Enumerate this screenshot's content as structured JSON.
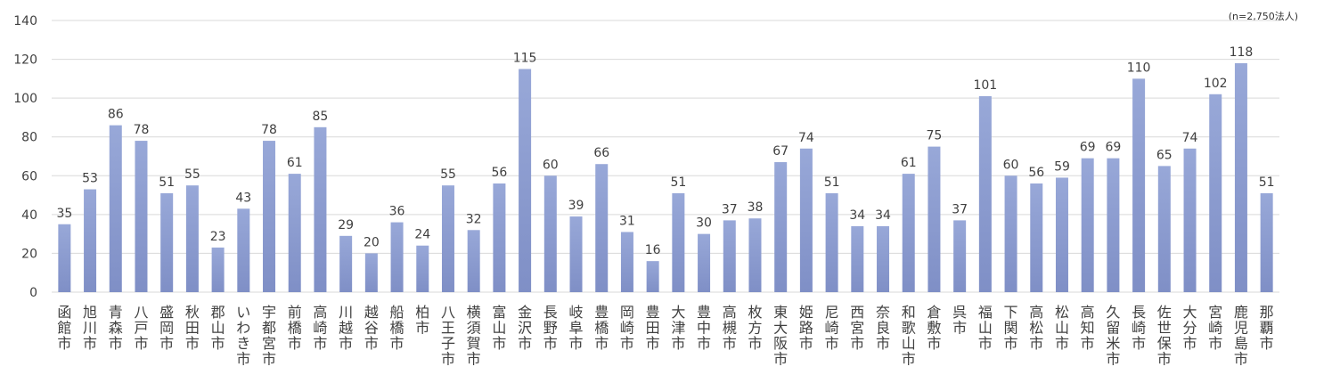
{
  "chart_data": {
    "type": "bar",
    "note": "(n=2,750法人)",
    "categories": [
      "函館市",
      "旭川市",
      "青森市",
      "八戸市",
      "盛岡市",
      "秋田市",
      "郡山市",
      "いわき市",
      "宇都宮市",
      "前橋市",
      "高崎市",
      "川越市",
      "越谷市",
      "船橋市",
      "柏市",
      "八王子市",
      "横須賀市",
      "富山市",
      "金沢市",
      "長野市",
      "岐阜市",
      "豊橋市",
      "岡崎市",
      "豊田市",
      "大津市",
      "豊中市",
      "高槻市",
      "枚方市",
      "東大阪市",
      "姫路市",
      "尼崎市",
      "西宮市",
      "奈良市",
      "和歌山市",
      "倉敷市",
      "呉市",
      "福山市",
      "下関市",
      "高松市",
      "松山市",
      "高知市",
      "久留米市",
      "長崎市",
      "佐世保市",
      "大分市",
      "宮崎市",
      "鹿児島市",
      "那覇市"
    ],
    "values": [
      35,
      53,
      86,
      78,
      51,
      55,
      23,
      43,
      78,
      61,
      85,
      29,
      20,
      36,
      24,
      55,
      32,
      56,
      115,
      60,
      39,
      66,
      31,
      16,
      51,
      30,
      37,
      38,
      67,
      74,
      51,
      34,
      34,
      61,
      75,
      37,
      101,
      60,
      56,
      59,
      69,
      69,
      110,
      65,
      74,
      102,
      118,
      51
    ],
    "ylim": [
      0,
      140
    ],
    "yticks": [
      0,
      20,
      40,
      60,
      80,
      100,
      120,
      140
    ],
    "grid": true,
    "bar_color_top": "#98a8d8",
    "bar_color_bottom": "#7f8fc6",
    "grid_color": "#d9d9d9",
    "text_color": "#404040"
  }
}
